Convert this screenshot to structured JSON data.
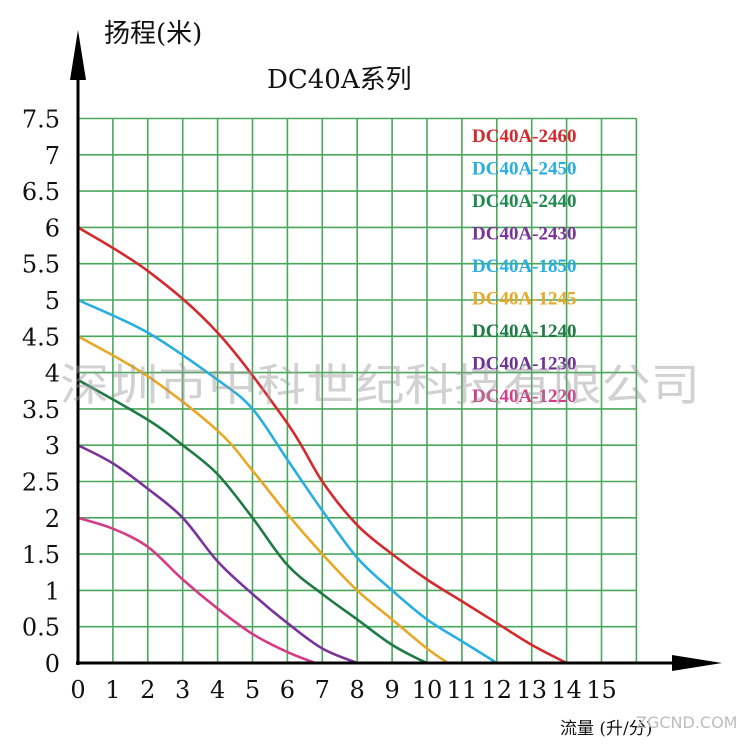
{
  "chart_data": {
    "type": "line",
    "title": "DC40A系列",
    "ylabel": "扬程(米)",
    "xlabel": "流量 (升/分)",
    "xlim": [
      0,
      16
    ],
    "ylim": [
      0,
      7.5
    ],
    "x_ticks": [
      "0",
      "1",
      "2",
      "3",
      "4",
      "5",
      "6",
      "7",
      "8",
      "9",
      "10",
      "11",
      "12",
      "13",
      "14",
      "15"
    ],
    "y_ticks": [
      "0",
      "0.5",
      "1",
      "1.5",
      "2",
      "2.5",
      "3",
      "3.5",
      "4",
      "4.5",
      "5",
      "5.5",
      "6",
      "6.5",
      "7",
      "7.5"
    ],
    "grid": true,
    "legend_position": "top-right",
    "series": [
      {
        "name": "DC40A-2460",
        "color": "#d42a2e",
        "x": [
          0,
          2,
          4,
          6,
          7,
          8,
          9,
          10,
          11,
          12,
          13,
          14
        ],
        "y": [
          6.0,
          5.4,
          4.55,
          3.3,
          2.5,
          1.9,
          1.5,
          1.15,
          0.85,
          0.55,
          0.25,
          0.0
        ]
      },
      {
        "name": "DC40A-2450",
        "color": "#28aee0",
        "x": [
          0,
          2,
          4,
          5,
          6,
          7,
          8,
          9,
          10,
          11,
          12
        ],
        "y": [
          5.0,
          4.55,
          3.9,
          3.5,
          2.8,
          2.1,
          1.45,
          1.0,
          0.6,
          0.3,
          0.0
        ]
      },
      {
        "name": "DC40A-2440",
        "color": "#1f8a50",
        "x": [],
        "y": []
      },
      {
        "name": "DC40A-2430",
        "color": "#7a3499",
        "x": [
          0,
          1,
          2,
          3,
          4,
          5,
          6,
          7,
          8
        ],
        "y": [
          3.0,
          2.75,
          2.4,
          2.0,
          1.4,
          0.95,
          0.55,
          0.2,
          0.0
        ]
      },
      {
        "name": "DC40A-1850",
        "color": "#28aee0",
        "x": [],
        "y": []
      },
      {
        "name": "DC40A-1245",
        "color": "#e8a825",
        "x": [
          0,
          2,
          4,
          5,
          6,
          7,
          8,
          9,
          10,
          10.6
        ],
        "y": [
          4.5,
          3.95,
          3.2,
          2.65,
          2.05,
          1.5,
          1.0,
          0.6,
          0.2,
          0.0
        ]
      },
      {
        "name": "DC40A-1240",
        "color": "#1f7a45",
        "x": [
          0,
          2,
          3,
          4,
          5,
          6,
          7,
          8,
          9,
          10,
          10.2
        ],
        "y": [
          3.9,
          3.35,
          3.0,
          2.6,
          2.0,
          1.35,
          0.95,
          0.6,
          0.25,
          0.0,
          0.0
        ]
      },
      {
        "name": "DC40A-1230",
        "color": "#6e3295",
        "x": [],
        "y": []
      },
      {
        "name": "DC40A-1220",
        "color": "#d33c87",
        "x": [
          0,
          1,
          2,
          3,
          4,
          5,
          6,
          6.8
        ],
        "y": [
          2.0,
          1.85,
          1.6,
          1.15,
          0.75,
          0.4,
          0.15,
          0.0
        ]
      }
    ]
  },
  "watermark_text": "深圳市中科世纪科技有限公司",
  "source_mark": "ZGCND.COM"
}
